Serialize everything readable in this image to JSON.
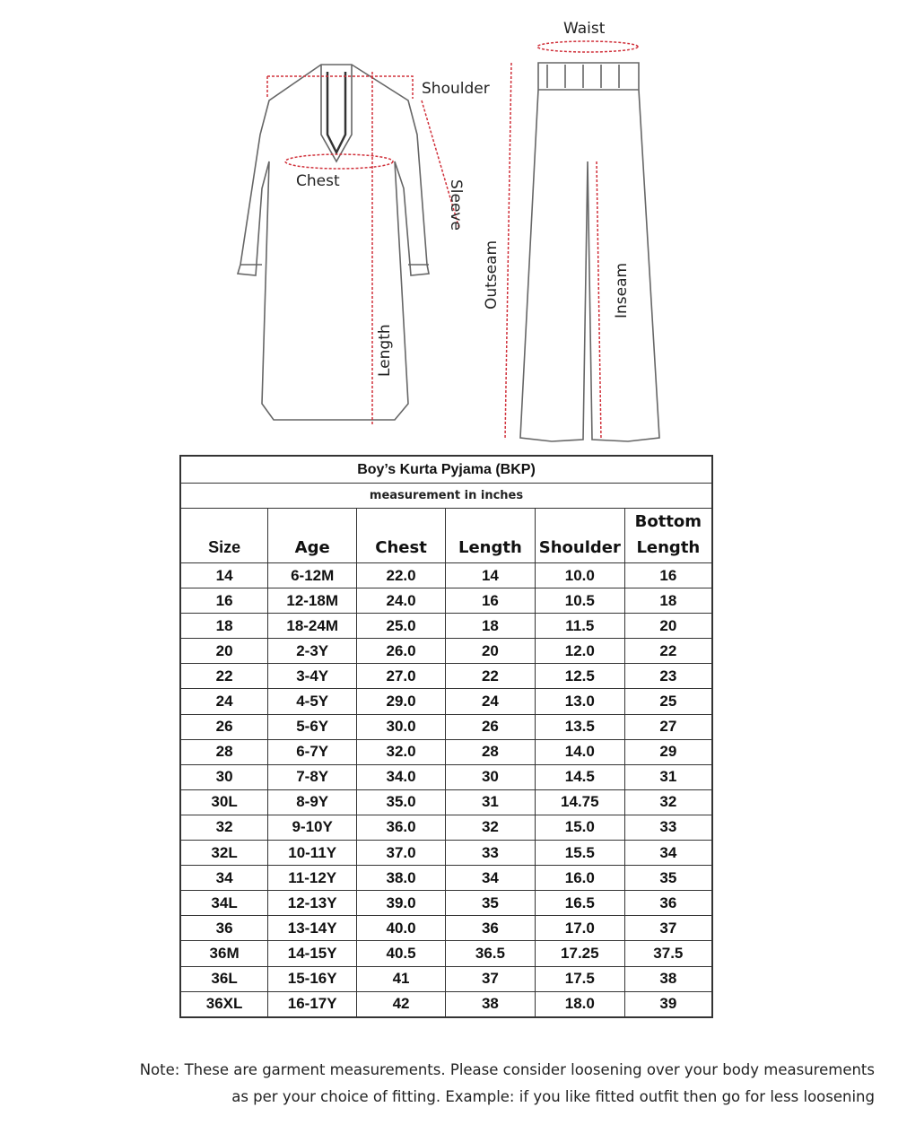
{
  "diagram": {
    "labels": {
      "waist": "Waist",
      "shoulder": "Shoulder",
      "chest": "Chest",
      "sleeve": "Sleeve",
      "length": "Length",
      "outseam": "Outseam",
      "inseam": "Inseam"
    }
  },
  "table": {
    "title": "Boy’s Kurta Pyjama (BKP)",
    "subtitle": "measurement in inches",
    "headers": [
      "Size",
      "Age",
      "Chest",
      "Length",
      "Shoulder",
      "Bottom Length"
    ],
    "rows": [
      [
        "14",
        "6-12M",
        "22.0",
        "14",
        "10.0",
        "16"
      ],
      [
        "16",
        "12-18M",
        "24.0",
        "16",
        "10.5",
        "18"
      ],
      [
        "18",
        "18-24M",
        "25.0",
        "18",
        "11.5",
        "20"
      ],
      [
        "20",
        "2-3Y",
        "26.0",
        "20",
        "12.0",
        "22"
      ],
      [
        "22",
        "3-4Y",
        "27.0",
        "22",
        "12.5",
        "23"
      ],
      [
        "24",
        "4-5Y",
        "29.0",
        "24",
        "13.0",
        "25"
      ],
      [
        "26",
        "5-6Y",
        "30.0",
        "26",
        "13.5",
        "27"
      ],
      [
        "28",
        "6-7Y",
        "32.0",
        "28",
        "14.0",
        "29"
      ],
      [
        "30",
        "7-8Y",
        "34.0",
        "30",
        "14.5",
        "31"
      ],
      [
        "30L",
        "8-9Y",
        "35.0",
        "31",
        "14.75",
        "32"
      ],
      [
        "32",
        "9-10Y",
        "36.0",
        "32",
        "15.0",
        "33"
      ],
      [
        "32L",
        "10-11Y",
        "37.0",
        "33",
        "15.5",
        "34"
      ],
      [
        "34",
        "11-12Y",
        "38.0",
        "34",
        "16.0",
        "35"
      ],
      [
        "34L",
        "12-13Y",
        "39.0",
        "35",
        "16.5",
        "36"
      ],
      [
        "36",
        "13-14Y",
        "40.0",
        "36",
        "17.0",
        "37"
      ],
      [
        "36M",
        "14-15Y",
        "40.5",
        "36.5",
        "17.25",
        "37.5"
      ],
      [
        "36L",
        "15-16Y",
        "41",
        "37",
        "17.5",
        "38"
      ],
      [
        "36XL",
        "16-17Y",
        "42",
        "38",
        "18.0",
        "39"
      ]
    ]
  },
  "note": {
    "line1": "Note: These are garment measurements. Please consider loosening over your body measurements",
    "line2": "as per your choice of fitting. Example: if you like fitted outfit then go for less loosening"
  },
  "colors": {
    "measure_line": "#d0303a",
    "outline": "#555555",
    "border": "#333333"
  }
}
